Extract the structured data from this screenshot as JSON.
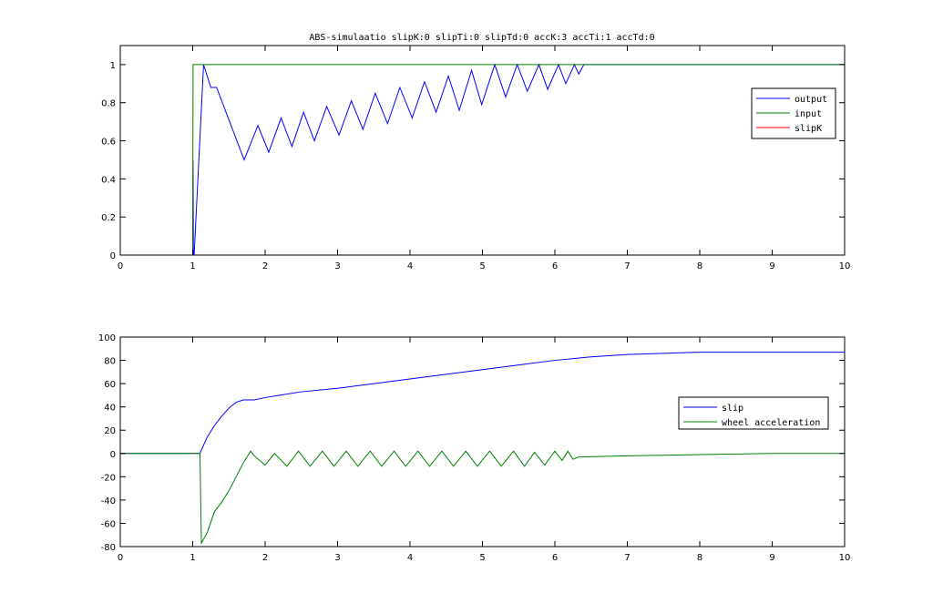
{
  "figure": {
    "background": "#ffffff"
  },
  "chart_data": [
    {
      "type": "line",
      "title": "ABS-simulaatio slipK:0 slipTi:0 slipTd:0 accK:3 accTi:1 accTd:0",
      "xlabel": "",
      "ylabel": "",
      "xlim": [
        0,
        10
      ],
      "ylim": [
        0,
        1.1
      ],
      "xticks": [
        0,
        1,
        2,
        3,
        4,
        5,
        6,
        7,
        8,
        9,
        10
      ],
      "yticks": [
        0,
        0.2,
        0.4,
        0.6,
        0.8,
        1
      ],
      "grid": false,
      "legend_position": "top-right",
      "series": [
        {
          "name": "output",
          "color": "#0000ff",
          "points": [
            [
              0,
              0
            ],
            [
              1,
              0
            ],
            [
              1.005,
              0.5
            ],
            [
              1.01,
              0
            ],
            [
              1.02,
              0
            ],
            [
              1.15,
              1.0
            ],
            [
              1.25,
              0.88
            ],
            [
              1.33,
              0.88
            ],
            [
              1.71,
              0.5
            ],
            [
              1.9,
              0.68
            ],
            [
              2.05,
              0.54
            ],
            [
              2.22,
              0.72
            ],
            [
              2.37,
              0.57
            ],
            [
              2.53,
              0.75
            ],
            [
              2.68,
              0.6
            ],
            [
              2.85,
              0.78
            ],
            [
              3.02,
              0.63
            ],
            [
              3.19,
              0.81
            ],
            [
              3.35,
              0.66
            ],
            [
              3.52,
              0.85
            ],
            [
              3.69,
              0.69
            ],
            [
              3.86,
              0.88
            ],
            [
              4.03,
              0.72
            ],
            [
              4.2,
              0.91
            ],
            [
              4.36,
              0.75
            ],
            [
              4.53,
              0.94
            ],
            [
              4.68,
              0.76
            ],
            [
              4.85,
              0.97
            ],
            [
              4.99,
              0.79
            ],
            [
              5.17,
              1.0
            ],
            [
              5.32,
              0.83
            ],
            [
              5.48,
              1.0
            ],
            [
              5.62,
              0.86
            ],
            [
              5.78,
              1.0
            ],
            [
              5.9,
              0.87
            ],
            [
              6.05,
              1.0
            ],
            [
              6.15,
              0.9
            ],
            [
              6.27,
              1.0
            ],
            [
              6.33,
              0.95
            ],
            [
              6.4,
              1.0
            ],
            [
              10,
              1.0
            ]
          ]
        },
        {
          "name": "input",
          "color": "#008000",
          "points": [
            [
              0,
              0
            ],
            [
              1,
              0
            ],
            [
              1.005,
              1.0
            ],
            [
              10,
              1.0
            ]
          ]
        },
        {
          "name": "slipK",
          "color": "#ff0000",
          "points": []
        }
      ]
    },
    {
      "type": "line",
      "title": "",
      "xlabel": "",
      "ylabel": "",
      "xlim": [
        0,
        10
      ],
      "ylim": [
        -80,
        100
      ],
      "xticks": [
        0,
        1,
        2,
        3,
        4,
        5,
        6,
        7,
        8,
        9,
        10
      ],
      "yticks": [
        -80,
        -60,
        -40,
        -20,
        0,
        20,
        40,
        60,
        80,
        100
      ],
      "grid": false,
      "legend_position": "right",
      "series": [
        {
          "name": "slip",
          "color": "#0000ff",
          "points": [
            [
              0,
              0
            ],
            [
              1.1,
              0
            ],
            [
              1.12,
              3
            ],
            [
              1.2,
              14
            ],
            [
              1.3,
              24
            ],
            [
              1.4,
              32
            ],
            [
              1.5,
              39
            ],
            [
              1.6,
              44
            ],
            [
              1.7,
              46
            ],
            [
              1.85,
              46
            ],
            [
              2,
              48
            ],
            [
              2.2,
              50
            ],
            [
              2.5,
              53
            ],
            [
              3,
              56
            ],
            [
              3.5,
              60
            ],
            [
              4,
              64
            ],
            [
              4.5,
              68
            ],
            [
              5,
              72
            ],
            [
              5.5,
              76
            ],
            [
              6,
              80
            ],
            [
              6.5,
              83
            ],
            [
              7,
              85
            ],
            [
              7.5,
              86
            ],
            [
              8,
              87
            ],
            [
              9,
              87
            ],
            [
              10,
              87
            ]
          ]
        },
        {
          "name": "wheel acceleration",
          "color": "#008000",
          "points": [
            [
              0,
              0
            ],
            [
              1.1,
              0
            ],
            [
              1.12,
              -77
            ],
            [
              1.2,
              -68
            ],
            [
              1.3,
              -50
            ],
            [
              1.4,
              -42
            ],
            [
              1.5,
              -32
            ],
            [
              1.6,
              -20
            ],
            [
              1.7,
              -8
            ],
            [
              1.8,
              2
            ],
            [
              1.85,
              -2
            ],
            [
              2.0,
              -10
            ],
            [
              2.13,
              0
            ],
            [
              2.3,
              -11
            ],
            [
              2.46,
              2
            ],
            [
              2.62,
              -11
            ],
            [
              2.79,
              2
            ],
            [
              2.95,
              -11
            ],
            [
              3.12,
              2
            ],
            [
              3.28,
              -11
            ],
            [
              3.45,
              2
            ],
            [
              3.61,
              -11
            ],
            [
              3.78,
              2
            ],
            [
              3.94,
              -11
            ],
            [
              4.11,
              2
            ],
            [
              4.27,
              -11
            ],
            [
              4.44,
              2
            ],
            [
              4.6,
              -11
            ],
            [
              4.77,
              2
            ],
            [
              4.93,
              -11
            ],
            [
              5.1,
              2
            ],
            [
              5.26,
              -11
            ],
            [
              5.43,
              2
            ],
            [
              5.58,
              -11
            ],
            [
              5.72,
              1
            ],
            [
              5.86,
              -10
            ],
            [
              6.0,
              2
            ],
            [
              6.1,
              -6
            ],
            [
              6.18,
              2
            ],
            [
              6.25,
              -5
            ],
            [
              6.33,
              -3
            ],
            [
              7,
              -2
            ],
            [
              8,
              -1
            ],
            [
              9,
              0
            ],
            [
              10,
              0
            ]
          ]
        }
      ]
    }
  ]
}
